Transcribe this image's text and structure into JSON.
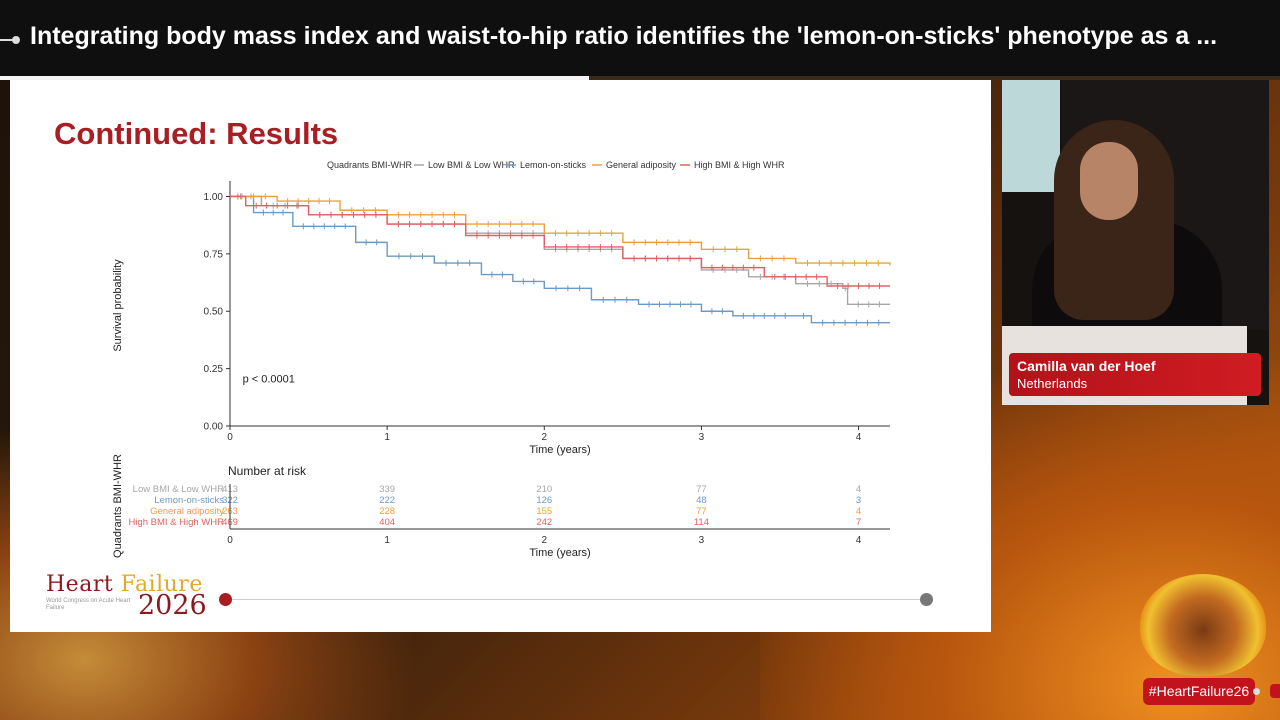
{
  "header": {
    "title": "Integrating body mass index and waist-to-hip ratio identifies the 'lemon-on-sticks' phenotype as a ..."
  },
  "progress": {
    "fraction": 0.46
  },
  "slide": {
    "title": "Continued: Results",
    "brand": {
      "heart": "Heart ",
      "failure": "Failure",
      "sub": "World Congress on Acute Heart Failure",
      "year": "2026"
    }
  },
  "speaker": {
    "name": "Camilla van der Hoef",
    "country": "Netherlands"
  },
  "hashtag": "#HeartFailure26",
  "colors": {
    "accent": "#a81e22",
    "s1": "#a6a6a6",
    "s2": "#6b9ac4",
    "s3": "#e9a23b",
    "s4": "#e06262"
  },
  "chart_data": {
    "type": "line",
    "legend_title": "Quadrants BMI-WHR",
    "legend_position": "top",
    "xlabel": "Time (years)",
    "ylabel": "Survival probability",
    "xlim": [
      0,
      4.2
    ],
    "ylim": [
      0,
      1.05
    ],
    "xticks": [
      "0",
      "1",
      "2",
      "3",
      "4"
    ],
    "yticks": [
      "0.00",
      "0.25",
      "0.50",
      "0.75",
      "1.00"
    ],
    "annotation": "p < 0.0001",
    "series": [
      {
        "name": "Low BMI & Low WHR",
        "color": "#a6a6a6",
        "points": [
          [
            0,
            1
          ],
          [
            0.2,
            0.96
          ],
          [
            0.5,
            0.92
          ],
          [
            1,
            0.88
          ],
          [
            1.5,
            0.84
          ],
          [
            2,
            0.77
          ],
          [
            2.5,
            0.73
          ],
          [
            3,
            0.68
          ],
          [
            3.3,
            0.65
          ],
          [
            3.6,
            0.62
          ],
          [
            3.9,
            0.6
          ],
          [
            3.93,
            0.53
          ],
          [
            4.2,
            0.53
          ]
        ]
      },
      {
        "name": "Lemon-on-sticks",
        "color": "#6b9ac4",
        "points": [
          [
            0,
            1
          ],
          [
            0.15,
            0.93
          ],
          [
            0.4,
            0.87
          ],
          [
            0.8,
            0.8
          ],
          [
            1,
            0.74
          ],
          [
            1.3,
            0.71
          ],
          [
            1.6,
            0.66
          ],
          [
            1.8,
            0.63
          ],
          [
            2,
            0.6
          ],
          [
            2.3,
            0.55
          ],
          [
            2.6,
            0.53
          ],
          [
            3,
            0.5
          ],
          [
            3.2,
            0.48
          ],
          [
            3.6,
            0.48
          ],
          [
            3.7,
            0.45
          ],
          [
            4.2,
            0.45
          ]
        ]
      },
      {
        "name": "General adiposity",
        "color": "#e9a23b",
        "points": [
          [
            0,
            1
          ],
          [
            0.3,
            0.98
          ],
          [
            0.7,
            0.94
          ],
          [
            1,
            0.92
          ],
          [
            1.5,
            0.88
          ],
          [
            2,
            0.84
          ],
          [
            2.5,
            0.8
          ],
          [
            3,
            0.77
          ],
          [
            3.3,
            0.73
          ],
          [
            3.6,
            0.71
          ],
          [
            4.2,
            0.7
          ]
        ]
      },
      {
        "name": "High BMI & High WHR",
        "color": "#e06262",
        "points": [
          [
            0,
            1
          ],
          [
            0.1,
            0.96
          ],
          [
            0.5,
            0.92
          ],
          [
            1,
            0.88
          ],
          [
            1.5,
            0.83
          ],
          [
            2,
            0.78
          ],
          [
            2.5,
            0.73
          ],
          [
            3,
            0.69
          ],
          [
            3.4,
            0.65
          ],
          [
            3.8,
            0.61
          ],
          [
            4.2,
            0.61
          ]
        ]
      }
    ],
    "risk_table": {
      "title": "Number at risk",
      "ylabel": "Quadrants BMI-WHR",
      "xlabel": "Time (years)",
      "times": [
        "0",
        "1",
        "2",
        "3",
        "4"
      ],
      "rows": [
        {
          "label": "Low BMI & Low WHR",
          "color": "#a6a6a6",
          "values": [
            "413",
            "339",
            "210",
            "77",
            "4"
          ]
        },
        {
          "label": "Lemon-on-sticks",
          "color": "#6b9ac4",
          "values": [
            "322",
            "222",
            "126",
            "48",
            "3"
          ]
        },
        {
          "label": "General adiposity",
          "color": "#e9a23b",
          "values": [
            "263",
            "228",
            "155",
            "77",
            "4"
          ]
        },
        {
          "label": "High BMI & High WHR",
          "color": "#e06262",
          "values": [
            "469",
            "404",
            "242",
            "114",
            "7"
          ]
        }
      ]
    }
  }
}
